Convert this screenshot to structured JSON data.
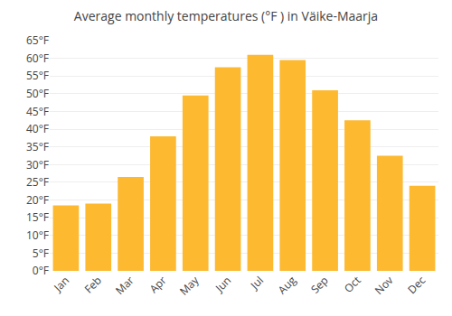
{
  "chart_data": {
    "type": "bar",
    "title": "Average monthly temperatures (°F ) in Väike-Maarja",
    "categories": [
      "Jan",
      "Feb",
      "Mar",
      "Apr",
      "May",
      "Jun",
      "Jul",
      "Aug",
      "Sep",
      "Oct",
      "Nov",
      "Dec"
    ],
    "values": [
      18.5,
      19.0,
      26.5,
      38.0,
      49.5,
      57.5,
      61.0,
      59.5,
      51.0,
      42.5,
      32.5,
      24.0
    ],
    "color": "#FDB930",
    "ylim": [
      0,
      65
    ],
    "yticks": [
      {
        "value": 0,
        "label": "0°F"
      },
      {
        "value": 5,
        "label": "5°F"
      },
      {
        "value": 10,
        "label": "10°F"
      },
      {
        "value": 15,
        "label": "15°F"
      },
      {
        "value": 20,
        "label": "20°F"
      },
      {
        "value": 25,
        "label": "25°F"
      },
      {
        "value": 30,
        "label": "30°F"
      },
      {
        "value": 35,
        "label": "35°F"
      },
      {
        "value": 40,
        "label": "40°F"
      },
      {
        "value": 45,
        "label": "45°F"
      },
      {
        "value": 50,
        "label": "50°F"
      },
      {
        "value": 55,
        "label": "55°F"
      },
      {
        "value": 60,
        "label": "60°F"
      },
      {
        "value": 65,
        "label": "65°F"
      }
    ],
    "grid": true
  }
}
